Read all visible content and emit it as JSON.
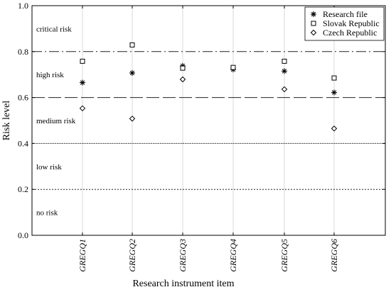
{
  "chart_data": {
    "type": "scatter",
    "title": "",
    "xlabel": "Research instrument item",
    "ylabel": "Risk level",
    "categories": [
      "GREGQ1",
      "GREGQ2",
      "GREGQ3",
      "GREGQ4",
      "GREGQ5",
      "GREGQ6"
    ],
    "ylim": [
      0,
      1.0
    ],
    "yticks": [
      "0.0",
      "0.2",
      "0.4",
      "0.6",
      "0.8",
      "1.0"
    ],
    "legend_position": "top-right",
    "series": [
      {
        "name": "Research file",
        "marker": "asterisk",
        "values": [
          0.665,
          0.707,
          0.738,
          0.722,
          0.715,
          0.622
        ]
      },
      {
        "name": "Slovak Republic",
        "marker": "square",
        "values": [
          0.758,
          0.829,
          0.728,
          0.731,
          0.758,
          0.685
        ]
      },
      {
        "name": "Czech Republic",
        "marker": "diamond",
        "values": [
          0.553,
          0.508,
          0.679,
          null,
          0.636,
          0.465
        ]
      }
    ],
    "thresholds": [
      {
        "value": 0.8,
        "style": "dash-dot"
      },
      {
        "value": 0.6,
        "style": "dashed"
      },
      {
        "value": 0.4,
        "style": "dotted-dense"
      },
      {
        "value": 0.2,
        "style": "dotted"
      }
    ],
    "zone_labels": [
      {
        "text": "critical risk",
        "y": 0.9
      },
      {
        "text": "high risk",
        "y": 0.7
      },
      {
        "text": "medium risk",
        "y": 0.5
      },
      {
        "text": "low risk",
        "y": 0.3
      },
      {
        "text": "no risk",
        "y": 0.1
      }
    ]
  }
}
